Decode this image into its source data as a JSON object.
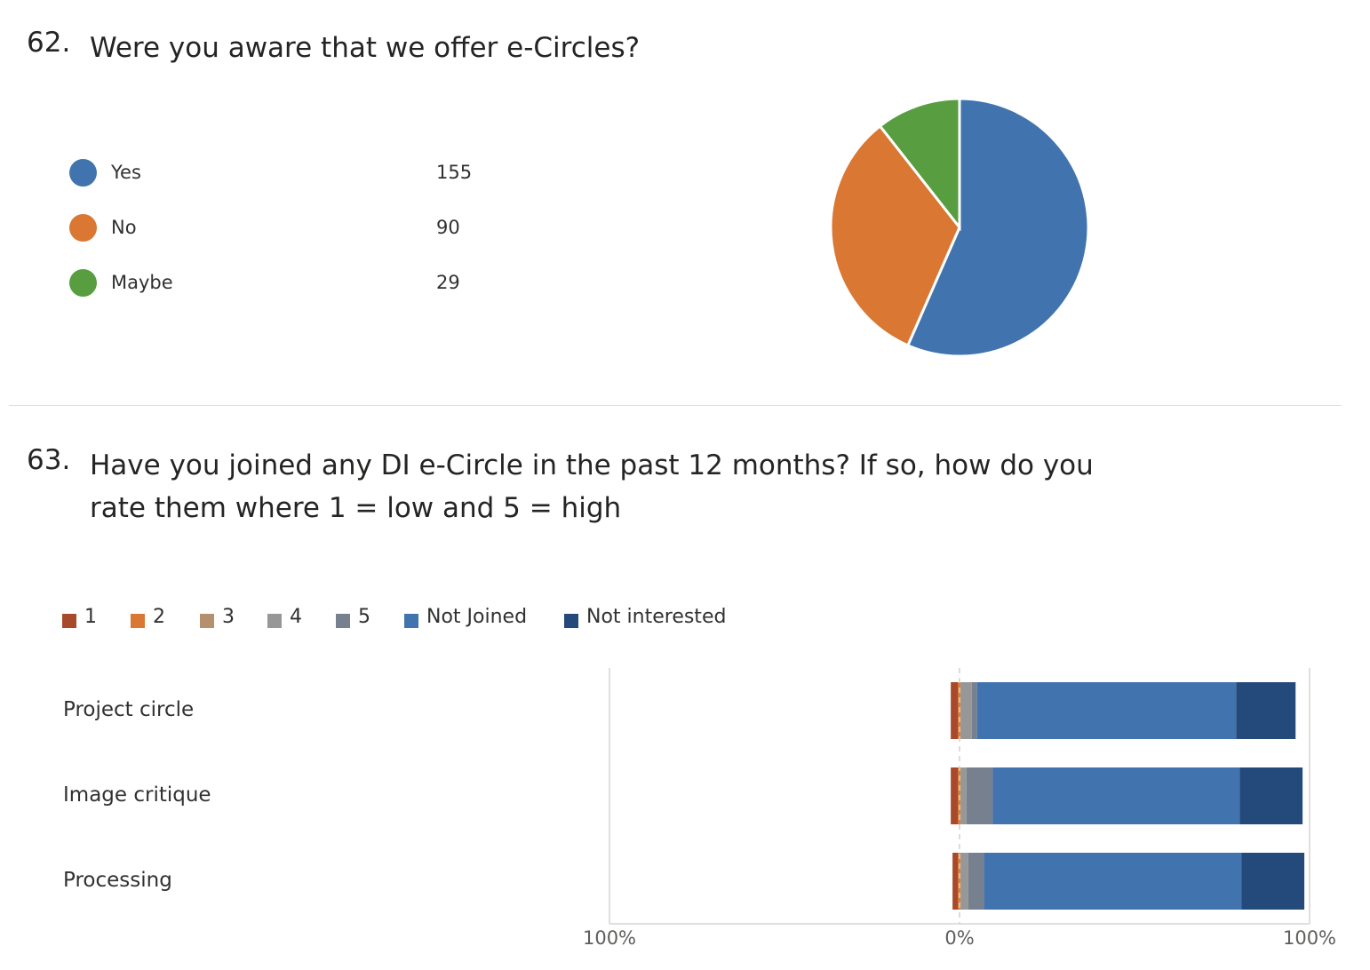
{
  "q62": {
    "number": "62.",
    "text": "Were you aware that we offer e-Circles?",
    "options": [
      {
        "label": "Yes",
        "count": "155",
        "color": "#4174AE"
      },
      {
        "label": "No",
        "count": "90",
        "color": "#D97733"
      },
      {
        "label": "Maybe",
        "count": "29",
        "color": "#589E41"
      }
    ]
  },
  "q63": {
    "number": "63.",
    "text": "Have you joined any DI e-Circle in the past 12 months? If so, how do you rate them where 1 = low and 5 = high",
    "legend": [
      {
        "label": "1",
        "color": "#A7492A"
      },
      {
        "label": "2",
        "color": "#D97733"
      },
      {
        "label": "3",
        "color": "#B5906F"
      },
      {
        "label": "4",
        "color": "#979797"
      },
      {
        "label": "5",
        "color": "#76808E"
      },
      {
        "label": "Not Joined",
        "color": "#4174AE"
      },
      {
        "label": "Not interested",
        "color": "#244A7C"
      }
    ],
    "rows": [
      {
        "label": "Project circle"
      },
      {
        "label": "Image critique"
      },
      {
        "label": "Processing"
      }
    ],
    "axis_ticks": [
      "100%",
      "0%",
      "100%"
    ]
  },
  "chart_data": [
    {
      "type": "pie",
      "title": "Were you aware that we offer e-Circles?",
      "categories": [
        "Yes",
        "No",
        "Maybe"
      ],
      "values": [
        155,
        90,
        29
      ],
      "colors": [
        "#4174AE",
        "#D97733",
        "#589E41"
      ]
    },
    {
      "type": "bar",
      "orientation": "horizontal-diverging",
      "title": "Have you joined any DI e-Circle in the past 12 months? If so, how do you rate them where 1 = low and 5 = high",
      "categories": [
        "Project circle",
        "Image critique",
        "Processing"
      ],
      "xlim": [
        -100,
        100
      ],
      "axis_tick_labels": [
        "100%",
        "0%",
        "100%"
      ],
      "negative_series": [
        "1",
        "2"
      ],
      "series": [
        {
          "name": "1",
          "color": "#A7492A",
          "values": [
            2.0,
            2.0,
            1.5
          ]
        },
        {
          "name": "2",
          "color": "#D97733",
          "values": [
            0.5,
            0.5,
            0.5
          ]
        },
        {
          "name": "3",
          "color": "#B5906F",
          "values": [
            0.5,
            0.5,
            0.5
          ]
        },
        {
          "name": "4",
          "color": "#979797",
          "values": [
            3.0,
            1.5,
            2.0
          ]
        },
        {
          "name": "5",
          "color": "#76808E",
          "values": [
            1.5,
            7.5,
            4.5
          ]
        },
        {
          "name": "Not Joined",
          "color": "#4174AE",
          "values": [
            74.0,
            70.5,
            73.5
          ]
        },
        {
          "name": "Not interested",
          "color": "#244A7C",
          "values": [
            17.0,
            18.0,
            18.0
          ]
        }
      ],
      "grid": true
    }
  ]
}
